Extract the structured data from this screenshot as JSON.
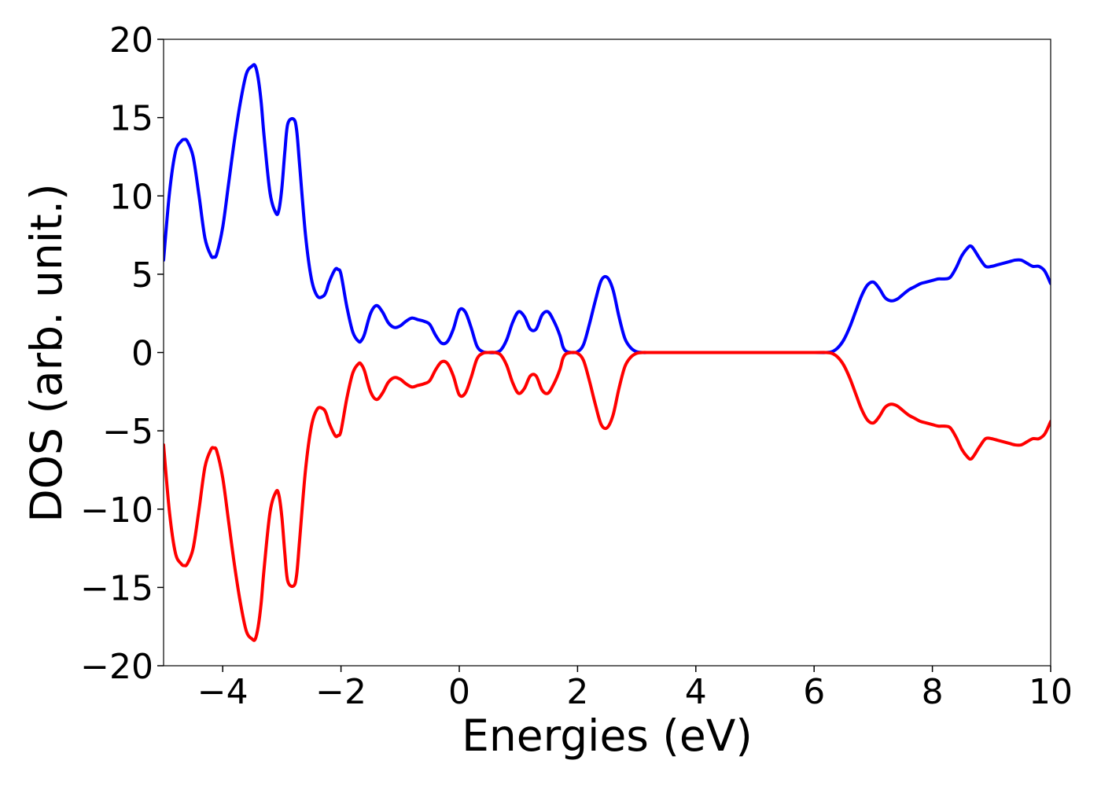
{
  "chart_data": {
    "type": "line",
    "title": "",
    "xlabel": "Energies (eV)",
    "ylabel": "DOS (arb. unit.)",
    "xlim": [
      -5,
      10
    ],
    "ylim": [
      -20,
      20
    ],
    "xticks": [
      -4,
      -2,
      0,
      2,
      4,
      6,
      8,
      10
    ],
    "xtick_labels": [
      "−4",
      "−2",
      "0",
      "2",
      "4",
      "6",
      "8",
      "10"
    ],
    "yticks": [
      -20,
      -15,
      -10,
      -5,
      0,
      5,
      10,
      15,
      20
    ],
    "ytick_labels": [
      "−20",
      "−15",
      "−10",
      "−5",
      "0",
      "5",
      "10",
      "15",
      "20"
    ],
    "grid": false,
    "legend": false,
    "series": [
      {
        "color": "#0000ff",
        "x": [
          -5.0,
          -4.9,
          -4.8,
          -4.7,
          -4.65,
          -4.6,
          -4.5,
          -4.4,
          -4.3,
          -4.2,
          -4.15,
          -4.1,
          -4.0,
          -3.9,
          -3.8,
          -3.7,
          -3.6,
          -3.5,
          -3.45,
          -3.4,
          -3.35,
          -3.3,
          -3.2,
          -3.1,
          -3.05,
          -3.0,
          -2.95,
          -2.9,
          -2.8,
          -2.75,
          -2.7,
          -2.6,
          -2.5,
          -2.4,
          -2.3,
          -2.25,
          -2.2,
          -2.1,
          -2.05,
          -2.0,
          -1.9,
          -1.8,
          -1.7,
          -1.65,
          -1.6,
          -1.5,
          -1.4,
          -1.3,
          -1.2,
          -1.1,
          -1.0,
          -0.9,
          -0.8,
          -0.7,
          -0.6,
          -0.5,
          -0.4,
          -0.3,
          -0.2,
          -0.1,
          0.0,
          0.1,
          0.2,
          0.3,
          0.4,
          0.5,
          0.6,
          0.7,
          0.8,
          0.9,
          1.0,
          1.1,
          1.2,
          1.3,
          1.4,
          1.5,
          1.6,
          1.7,
          1.75,
          1.8,
          1.9,
          2.0,
          2.1,
          2.2,
          2.3,
          2.4,
          2.5,
          2.6,
          2.7,
          2.8,
          2.9,
          3.0,
          3.1,
          3.2,
          3.3,
          3.4,
          3.5,
          3.6,
          3.7,
          3.8,
          4.0,
          5.0,
          6.0,
          6.2,
          6.3,
          6.4,
          6.5,
          6.6,
          6.7,
          6.8,
          6.9,
          7.0,
          7.1,
          7.2,
          7.3,
          7.4,
          7.5,
          7.6,
          7.7,
          7.8,
          7.9,
          8.0,
          8.1,
          8.2,
          8.3,
          8.4,
          8.5,
          8.6,
          8.65,
          8.7,
          8.8,
          8.9,
          9.0,
          9.1,
          9.2,
          9.3,
          9.4,
          9.5,
          9.6,
          9.7,
          9.8,
          9.9,
          10.0
        ],
        "y": [
          5.9,
          10.2,
          12.8,
          13.5,
          13.6,
          13.5,
          12.5,
          10.0,
          7.3,
          6.2,
          6.1,
          6.3,
          8.0,
          10.8,
          13.6,
          16.0,
          17.8,
          18.3,
          18.3,
          17.5,
          16.0,
          13.8,
          10.2,
          8.9,
          9.1,
          10.5,
          12.8,
          14.6,
          14.9,
          14.2,
          12.0,
          7.5,
          4.7,
          3.6,
          3.6,
          3.9,
          4.5,
          5.3,
          5.3,
          5.0,
          2.9,
          1.3,
          0.7,
          0.8,
          1.2,
          2.5,
          3.0,
          2.6,
          1.9,
          1.6,
          1.7,
          2.0,
          2.2,
          2.1,
          2.0,
          1.8,
          1.1,
          0.6,
          0.7,
          1.5,
          2.7,
          2.6,
          1.6,
          0.4,
          0.05,
          0.0,
          0.0,
          0.15,
          0.8,
          1.9,
          2.6,
          2.3,
          1.5,
          1.5,
          2.4,
          2.6,
          2.0,
          1.1,
          0.4,
          0.1,
          0.0,
          0.05,
          0.5,
          1.8,
          3.3,
          4.6,
          4.8,
          4.0,
          2.3,
          0.9,
          0.3,
          0.05,
          0.0,
          0.0,
          0.0,
          0.0,
          0.0,
          0.0,
          0.0,
          0.0,
          0.0,
          0.0,
          0.0,
          0.0,
          0.05,
          0.3,
          0.8,
          1.6,
          2.6,
          3.6,
          4.3,
          4.5,
          4.1,
          3.5,
          3.3,
          3.4,
          3.7,
          4.0,
          4.2,
          4.4,
          4.5,
          4.6,
          4.7,
          4.7,
          4.8,
          5.4,
          6.2,
          6.7,
          6.8,
          6.6,
          6.0,
          5.5,
          5.5,
          5.6,
          5.7,
          5.8,
          5.9,
          5.9,
          5.7,
          5.5,
          5.5,
          5.2,
          4.4
        ]
      },
      {
        "color": "#ff0000",
        "x": [
          -5.0,
          -4.9,
          -4.8,
          -4.7,
          -4.65,
          -4.6,
          -4.5,
          -4.4,
          -4.3,
          -4.2,
          -4.15,
          -4.1,
          -4.0,
          -3.9,
          -3.8,
          -3.7,
          -3.6,
          -3.5,
          -3.45,
          -3.4,
          -3.35,
          -3.3,
          -3.2,
          -3.1,
          -3.05,
          -3.0,
          -2.95,
          -2.9,
          -2.8,
          -2.75,
          -2.7,
          -2.6,
          -2.5,
          -2.4,
          -2.3,
          -2.25,
          -2.2,
          -2.1,
          -2.05,
          -2.0,
          -1.9,
          -1.8,
          -1.7,
          -1.65,
          -1.6,
          -1.5,
          -1.4,
          -1.3,
          -1.2,
          -1.1,
          -1.0,
          -0.9,
          -0.8,
          -0.7,
          -0.6,
          -0.5,
          -0.4,
          -0.3,
          -0.2,
          -0.1,
          0.0,
          0.1,
          0.2,
          0.3,
          0.4,
          0.5,
          0.6,
          0.7,
          0.8,
          0.9,
          1.0,
          1.1,
          1.2,
          1.3,
          1.4,
          1.5,
          1.6,
          1.7,
          1.75,
          1.8,
          1.9,
          2.0,
          2.1,
          2.2,
          2.3,
          2.4,
          2.5,
          2.6,
          2.7,
          2.8,
          2.9,
          3.0,
          3.1,
          3.2,
          3.3,
          3.4,
          3.5,
          3.6,
          3.7,
          3.8,
          4.0,
          5.0,
          6.0,
          6.2,
          6.3,
          6.4,
          6.5,
          6.6,
          6.7,
          6.8,
          6.9,
          7.0,
          7.1,
          7.2,
          7.3,
          7.4,
          7.5,
          7.6,
          7.7,
          7.8,
          7.9,
          8.0,
          8.1,
          8.2,
          8.3,
          8.4,
          8.5,
          8.6,
          8.65,
          8.7,
          8.8,
          8.9,
          9.0,
          9.1,
          9.2,
          9.3,
          9.4,
          9.5,
          9.6,
          9.7,
          9.8,
          9.9,
          10.0
        ],
        "y": [
          -5.9,
          -10.2,
          -12.8,
          -13.5,
          -13.6,
          -13.5,
          -12.5,
          -10.0,
          -7.3,
          -6.2,
          -6.1,
          -6.3,
          -8.0,
          -10.8,
          -13.6,
          -16.0,
          -17.8,
          -18.3,
          -18.3,
          -17.5,
          -16.0,
          -13.8,
          -10.2,
          -8.9,
          -9.1,
          -10.5,
          -12.8,
          -14.6,
          -14.9,
          -14.2,
          -12.0,
          -7.5,
          -4.7,
          -3.6,
          -3.6,
          -3.9,
          -4.5,
          -5.3,
          -5.3,
          -5.0,
          -2.9,
          -1.3,
          -0.7,
          -0.8,
          -1.2,
          -2.5,
          -3.0,
          -2.6,
          -1.9,
          -1.6,
          -1.7,
          -2.0,
          -2.2,
          -2.1,
          -2.0,
          -1.8,
          -1.1,
          -0.6,
          -0.7,
          -1.5,
          -2.7,
          -2.6,
          -1.6,
          -0.4,
          -0.05,
          0.0,
          0.0,
          -0.15,
          -0.8,
          -1.9,
          -2.6,
          -2.3,
          -1.5,
          -1.5,
          -2.4,
          -2.6,
          -2.0,
          -1.1,
          -0.4,
          -0.1,
          0.0,
          -0.05,
          -0.5,
          -1.8,
          -3.3,
          -4.6,
          -4.8,
          -4.0,
          -2.3,
          -0.9,
          -0.3,
          -0.05,
          0.0,
          0.0,
          0.0,
          0.0,
          0.0,
          0.0,
          0.0,
          0.0,
          0.0,
          0.0,
          0.0,
          0.0,
          -0.05,
          -0.3,
          -0.8,
          -1.6,
          -2.6,
          -3.6,
          -4.3,
          -4.5,
          -4.1,
          -3.5,
          -3.3,
          -3.4,
          -3.7,
          -4.0,
          -4.2,
          -4.4,
          -4.5,
          -4.6,
          -4.7,
          -4.7,
          -4.8,
          -5.4,
          -6.2,
          -6.7,
          -6.8,
          -6.6,
          -6.0,
          -5.5,
          -5.5,
          -5.6,
          -5.7,
          -5.8,
          -5.9,
          -5.9,
          -5.7,
          -5.5,
          -5.5,
          -5.2,
          -4.4
        ]
      }
    ]
  }
}
